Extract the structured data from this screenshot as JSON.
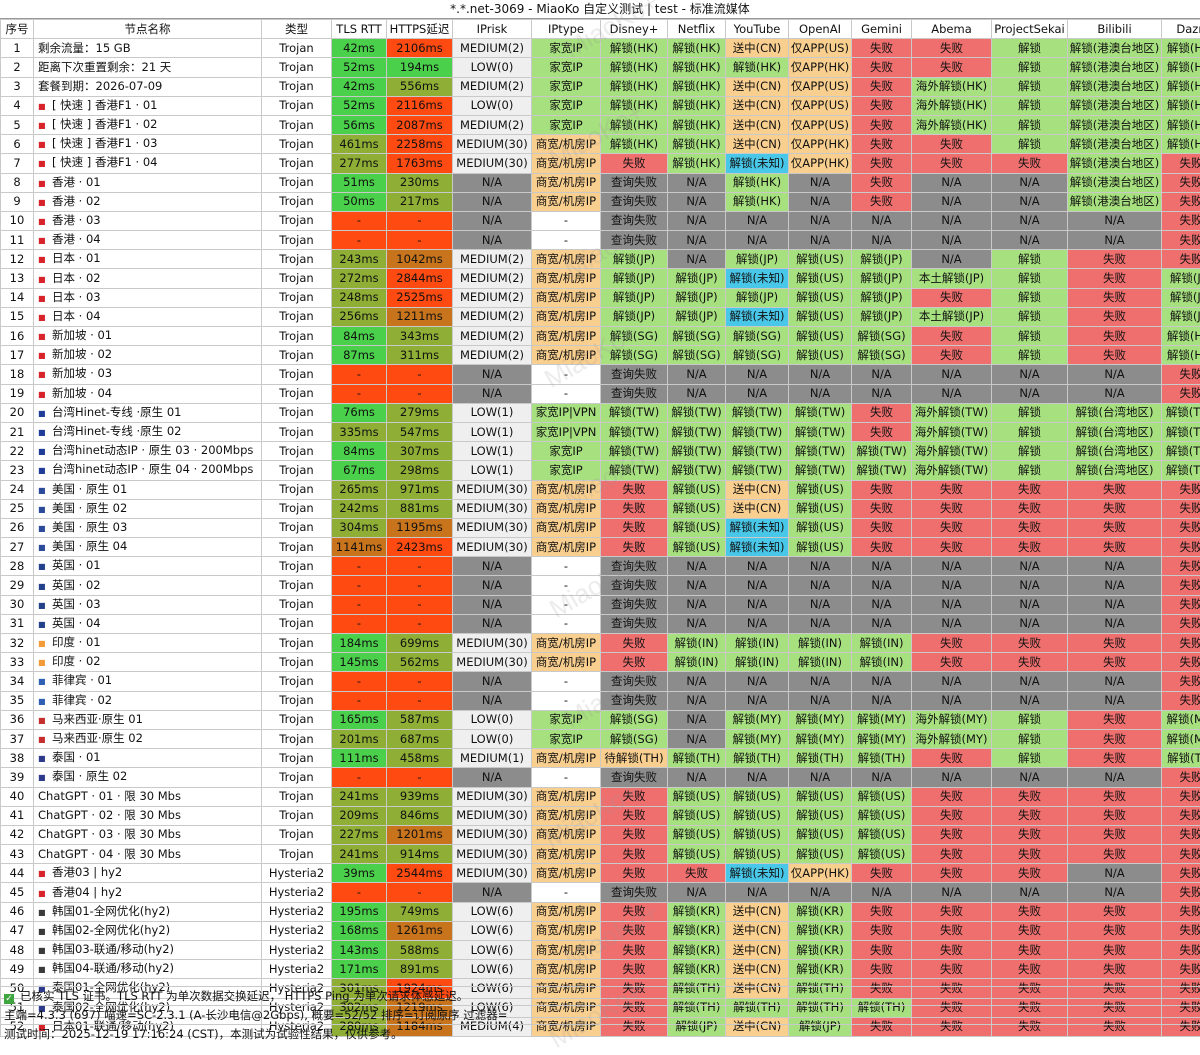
{
  "title": "*.*.net-3069 - MiaoKo 自定义测试 | test - 标准流媒体",
  "watermark": "MiaoKo+",
  "columns": [
    "序号",
    "节点名称",
    "类型",
    "TLS RTT",
    "HTTPS延迟",
    "IPrisk",
    "IPtype",
    "Disney+",
    "Netflix",
    "YouTube",
    "OpenAI",
    "Gemini",
    "Abema",
    "ProjectSekai",
    "Bilibili",
    "Dazn"
  ],
  "rows": [
    [
      "1",
      "剩余流量：15 GB",
      "Trojan",
      "42ms",
      "2106ms",
      "MEDIUM(2)",
      "家宽IP",
      "解锁(HK)",
      "解锁(HK)",
      "送中(CN)",
      "仅APP(US)",
      "失败",
      "失败",
      "解锁",
      "解锁(港澳台地区)",
      "解锁(HK)"
    ],
    [
      "2",
      "距离下次重置剩余：21 天",
      "Trojan",
      "52ms",
      "194ms",
      "LOW(0)",
      "家宽IP",
      "解锁(HK)",
      "解锁(HK)",
      "解锁(HK)",
      "仅APP(HK)",
      "失败",
      "失败",
      "解锁",
      "解锁(港澳台地区)",
      "解锁(HK)"
    ],
    [
      "3",
      "套餐到期：2026-07-09",
      "Trojan",
      "42ms",
      "556ms",
      "MEDIUM(2)",
      "家宽IP",
      "解锁(HK)",
      "解锁(HK)",
      "送中(CN)",
      "仅APP(US)",
      "失败",
      "海外解锁(HK)",
      "解锁",
      "解锁(港澳台地区)",
      "解锁(HK)"
    ],
    [
      "4",
      "[ 快速 ] 香港F1 · 01",
      "Trojan",
      "52ms",
      "2116ms",
      "LOW(0)",
      "家宽IP",
      "解锁(HK)",
      "解锁(HK)",
      "送中(CN)",
      "仅APP(US)",
      "失败",
      "海外解锁(HK)",
      "解锁",
      "解锁(港澳台地区)",
      "解锁(HK)"
    ],
    [
      "5",
      "[ 快速 ] 香港F1 · 02",
      "Trojan",
      "56ms",
      "2087ms",
      "MEDIUM(2)",
      "家宽IP",
      "解锁(HK)",
      "解锁(HK)",
      "送中(CN)",
      "仅APP(US)",
      "失败",
      "海外解锁(HK)",
      "解锁",
      "解锁(港澳台地区)",
      "解锁(HK)"
    ],
    [
      "6",
      "[ 快速 ] 香港F1 · 03",
      "Trojan",
      "461ms",
      "2258ms",
      "MEDIUM(30)",
      "商宽/机房IP",
      "解锁(HK)",
      "解锁(HK)",
      "送中(CN)",
      "仅APP(HK)",
      "失败",
      "失败",
      "解锁",
      "解锁(港澳台地区)",
      "解锁(HK)"
    ],
    [
      "7",
      "[ 快速 ] 香港F1 · 04",
      "Trojan",
      "277ms",
      "1763ms",
      "MEDIUM(30)",
      "商宽/机房IP",
      "失败",
      "解锁(HK)",
      "解锁(未知)",
      "仅APP(HK)",
      "失败",
      "失败",
      "失败",
      "解锁(港澳台地区)",
      "失败"
    ],
    [
      "8",
      "香港 · 01",
      "Trojan",
      "51ms",
      "230ms",
      "N/A",
      "商宽/机房IP",
      "查询失败",
      "N/A",
      "解锁(HK)",
      "N/A",
      "失败",
      "N/A",
      "N/A",
      "解锁(港澳台地区)",
      "失败"
    ],
    [
      "9",
      "香港 · 02",
      "Trojan",
      "50ms",
      "217ms",
      "N/A",
      "商宽/机房IP",
      "查询失败",
      "N/A",
      "解锁(HK)",
      "N/A",
      "失败",
      "N/A",
      "N/A",
      "解锁(港澳台地区)",
      "失败"
    ],
    [
      "10",
      "香港 · 03",
      "Trojan",
      "-",
      "-",
      "N/A",
      "-",
      "查询失败",
      "N/A",
      "N/A",
      "N/A",
      "N/A",
      "N/A",
      "N/A",
      "N/A",
      "失败"
    ],
    [
      "11",
      "香港 · 04",
      "Trojan",
      "-",
      "-",
      "N/A",
      "-",
      "查询失败",
      "N/A",
      "N/A",
      "N/A",
      "N/A",
      "N/A",
      "N/A",
      "N/A",
      "失败"
    ],
    [
      "12",
      "日本 · 01",
      "Trojan",
      "243ms",
      "1042ms",
      "MEDIUM(2)",
      "商宽/机房IP",
      "解锁(JP)",
      "N/A",
      "解锁(JP)",
      "解锁(US)",
      "解锁(JP)",
      "N/A",
      "解锁",
      "失败",
      "失败"
    ],
    [
      "13",
      "日本 · 02",
      "Trojan",
      "272ms",
      "2844ms",
      "MEDIUM(2)",
      "商宽/机房IP",
      "解锁(JP)",
      "解锁(JP)",
      "解锁(未知)",
      "解锁(US)",
      "解锁(JP)",
      "本土解锁(JP)",
      "解锁",
      "失败",
      "解锁(JP)"
    ],
    [
      "14",
      "日本 · 03",
      "Trojan",
      "248ms",
      "2525ms",
      "MEDIUM(2)",
      "商宽/机房IP",
      "解锁(JP)",
      "解锁(JP)",
      "解锁(JP)",
      "解锁(US)",
      "解锁(JP)",
      "失败",
      "解锁",
      "失败",
      "解锁(JP)"
    ],
    [
      "15",
      "日本 · 04",
      "Trojan",
      "256ms",
      "1211ms",
      "MEDIUM(2)",
      "商宽/机房IP",
      "解锁(JP)",
      "解锁(JP)",
      "解锁(未知)",
      "解锁(US)",
      "解锁(JP)",
      "本土解锁(JP)",
      "解锁",
      "失败",
      "解锁(JP)"
    ],
    [
      "16",
      "新加坡 · 01",
      "Trojan",
      "84ms",
      "343ms",
      "MEDIUM(2)",
      "商宽/机房IP",
      "解锁(SG)",
      "解锁(SG)",
      "解锁(SG)",
      "解锁(US)",
      "解锁(SG)",
      "失败",
      "解锁",
      "失败",
      "解锁(HK)"
    ],
    [
      "17",
      "新加坡 · 02",
      "Trojan",
      "87ms",
      "311ms",
      "MEDIUM(2)",
      "商宽/机房IP",
      "解锁(SG)",
      "解锁(SG)",
      "解锁(SG)",
      "解锁(US)",
      "解锁(SG)",
      "失败",
      "解锁",
      "失败",
      "解锁(HK)"
    ],
    [
      "18",
      "新加坡 · 03",
      "Trojan",
      "-",
      "-",
      "N/A",
      "-",
      "查询失败",
      "N/A",
      "N/A",
      "N/A",
      "N/A",
      "N/A",
      "N/A",
      "N/A",
      "失败"
    ],
    [
      "19",
      "新加坡 · 04",
      "Trojan",
      "-",
      "-",
      "N/A",
      "-",
      "查询失败",
      "N/A",
      "N/A",
      "N/A",
      "N/A",
      "N/A",
      "N/A",
      "N/A",
      "失败"
    ],
    [
      "20",
      "台湾Hinet-专线 ·原生 01",
      "Trojan",
      "76ms",
      "279ms",
      "LOW(1)",
      "家宽IP|VPN",
      "解锁(TW)",
      "解锁(TW)",
      "解锁(TW)",
      "解锁(TW)",
      "失败",
      "海外解锁(TW)",
      "解锁",
      "解锁(台湾地区)",
      "解锁(TW)"
    ],
    [
      "21",
      "台湾Hinet-专线 ·原生 02",
      "Trojan",
      "335ms",
      "547ms",
      "LOW(1)",
      "家宽IP|VPN",
      "解锁(TW)",
      "解锁(TW)",
      "解锁(TW)",
      "解锁(TW)",
      "失败",
      "海外解锁(TW)",
      "解锁",
      "解锁(台湾地区)",
      "解锁(TW)"
    ],
    [
      "22",
      "台湾hinet动态IP · 原生 03 · 200Mbps",
      "Trojan",
      "84ms",
      "307ms",
      "LOW(1)",
      "家宽IP",
      "解锁(TW)",
      "解锁(TW)",
      "解锁(TW)",
      "解锁(TW)",
      "解锁(TW)",
      "海外解锁(TW)",
      "解锁",
      "解锁(台湾地区)",
      "解锁(TW)"
    ],
    [
      "23",
      "台湾hinet动态IP · 原生 04 · 200Mbps",
      "Trojan",
      "67ms",
      "298ms",
      "LOW(1)",
      "家宽IP",
      "解锁(TW)",
      "解锁(TW)",
      "解锁(TW)",
      "解锁(TW)",
      "解锁(TW)",
      "海外解锁(TW)",
      "解锁",
      "解锁(台湾地区)",
      "解锁(TW)"
    ],
    [
      "24",
      "美国 · 原生 01",
      "Trojan",
      "265ms",
      "971ms",
      "MEDIUM(30)",
      "商宽/机房IP",
      "失败",
      "解锁(US)",
      "送中(CN)",
      "解锁(US)",
      "失败",
      "失败",
      "失败",
      "失败",
      "失败"
    ],
    [
      "25",
      "美国 · 原生 02",
      "Trojan",
      "242ms",
      "881ms",
      "MEDIUM(30)",
      "商宽/机房IP",
      "失败",
      "解锁(US)",
      "送中(CN)",
      "解锁(US)",
      "失败",
      "失败",
      "失败",
      "失败",
      "失败"
    ],
    [
      "26",
      "美国 · 原生 03",
      "Trojan",
      "304ms",
      "1195ms",
      "MEDIUM(30)",
      "商宽/机房IP",
      "失败",
      "解锁(US)",
      "解锁(未知)",
      "解锁(US)",
      "失败",
      "失败",
      "失败",
      "失败",
      "失败"
    ],
    [
      "27",
      "美国 · 原生 04",
      "Trojan",
      "1141ms",
      "2423ms",
      "MEDIUM(30)",
      "商宽/机房IP",
      "失败",
      "解锁(US)",
      "解锁(未知)",
      "解锁(US)",
      "失败",
      "失败",
      "失败",
      "失败",
      "失败"
    ],
    [
      "28",
      "英国 · 01",
      "Trojan",
      "-",
      "-",
      "N/A",
      "-",
      "查询失败",
      "N/A",
      "N/A",
      "N/A",
      "N/A",
      "N/A",
      "N/A",
      "N/A",
      "失败"
    ],
    [
      "29",
      "英国 · 02",
      "Trojan",
      "-",
      "-",
      "N/A",
      "-",
      "查询失败",
      "N/A",
      "N/A",
      "N/A",
      "N/A",
      "N/A",
      "N/A",
      "N/A",
      "失败"
    ],
    [
      "30",
      "英国 · 03",
      "Trojan",
      "-",
      "-",
      "N/A",
      "-",
      "查询失败",
      "N/A",
      "N/A",
      "N/A",
      "N/A",
      "N/A",
      "N/A",
      "N/A",
      "失败"
    ],
    [
      "31",
      "英国 · 04",
      "Trojan",
      "-",
      "-",
      "N/A",
      "-",
      "查询失败",
      "N/A",
      "N/A",
      "N/A",
      "N/A",
      "N/A",
      "N/A",
      "N/A",
      "失败"
    ],
    [
      "32",
      "印度 · 01",
      "Trojan",
      "184ms",
      "699ms",
      "MEDIUM(30)",
      "商宽/机房IP",
      "失败",
      "解锁(IN)",
      "解锁(IN)",
      "解锁(IN)",
      "解锁(IN)",
      "失败",
      "失败",
      "失败",
      "失败"
    ],
    [
      "33",
      "印度 · 02",
      "Trojan",
      "145ms",
      "562ms",
      "MEDIUM(30)",
      "商宽/机房IP",
      "失败",
      "解锁(IN)",
      "解锁(IN)",
      "解锁(IN)",
      "解锁(IN)",
      "失败",
      "失败",
      "失败",
      "失败"
    ],
    [
      "34",
      "菲律宾 · 01",
      "Trojan",
      "-",
      "-",
      "N/A",
      "-",
      "查询失败",
      "N/A",
      "N/A",
      "N/A",
      "N/A",
      "N/A",
      "N/A",
      "N/A",
      "失败"
    ],
    [
      "35",
      "菲律宾 · 02",
      "Trojan",
      "-",
      "-",
      "N/A",
      "-",
      "查询失败",
      "N/A",
      "N/A",
      "N/A",
      "N/A",
      "N/A",
      "N/A",
      "N/A",
      "失败"
    ],
    [
      "36",
      "马来西亚·原生 01",
      "Trojan",
      "165ms",
      "587ms",
      "LOW(0)",
      "家宽IP",
      "解锁(SG)",
      "N/A",
      "解锁(MY)",
      "解锁(MY)",
      "解锁(MY)",
      "海外解锁(MY)",
      "解锁",
      "失败",
      "解锁(MY)"
    ],
    [
      "37",
      "马来西亚·原生  02",
      "Trojan",
      "201ms",
      "687ms",
      "LOW(0)",
      "家宽IP",
      "解锁(SG)",
      "N/A",
      "解锁(MY)",
      "解锁(MY)",
      "解锁(MY)",
      "海外解锁(MY)",
      "解锁",
      "失败",
      "解锁(MY)"
    ],
    [
      "38",
      "泰国 · 01",
      "Trojan",
      "111ms",
      "458ms",
      "MEDIUM(1)",
      "商宽/机房IP",
      "待解锁(TH)",
      "解锁(TH)",
      "解锁(TH)",
      "解锁(TH)",
      "解锁(TH)",
      "失败",
      "解锁",
      "失败",
      "解锁(TH)"
    ],
    [
      "39",
      "泰国 · 原生  02",
      "Trojan",
      "-",
      "-",
      "N/A",
      "-",
      "查询失败",
      "N/A",
      "N/A",
      "N/A",
      "N/A",
      "N/A",
      "N/A",
      "N/A",
      "失败"
    ],
    [
      "40",
      "ChatGPT · 01 · 限 30 Mbs",
      "Trojan",
      "241ms",
      "939ms",
      "MEDIUM(30)",
      "商宽/机房IP",
      "失败",
      "解锁(US)",
      "解锁(US)",
      "解锁(US)",
      "解锁(US)",
      "失败",
      "失败",
      "失败",
      "失败"
    ],
    [
      "41",
      "ChatGPT · 02 · 限 30 Mbs",
      "Trojan",
      "209ms",
      "846ms",
      "MEDIUM(30)",
      "商宽/机房IP",
      "失败",
      "解锁(US)",
      "解锁(US)",
      "解锁(US)",
      "解锁(US)",
      "失败",
      "失败",
      "失败",
      "失败"
    ],
    [
      "42",
      "ChatGPT · 03 · 限 30 Mbs",
      "Trojan",
      "227ms",
      "1201ms",
      "MEDIUM(30)",
      "商宽/机房IP",
      "失败",
      "解锁(US)",
      "解锁(US)",
      "解锁(US)",
      "解锁(US)",
      "失败",
      "失败",
      "失败",
      "失败"
    ],
    [
      "43",
      "ChatGPT · 04 · 限 30 Mbs",
      "Trojan",
      "241ms",
      "914ms",
      "MEDIUM(30)",
      "商宽/机房IP",
      "失败",
      "解锁(US)",
      "解锁(US)",
      "解锁(US)",
      "解锁(US)",
      "失败",
      "失败",
      "失败",
      "失败"
    ],
    [
      "44",
      "香港03 | hy2",
      "Hysteria2",
      "39ms",
      "2544ms",
      "MEDIUM(30)",
      "商宽/机房IP",
      "失败",
      "失败",
      "解锁(未知)",
      "仅APP(HK)",
      "失败",
      "失败",
      "失败",
      "N/A",
      "失败"
    ],
    [
      "45",
      "香港04 | hy2",
      "Hysteria2",
      "-",
      "-",
      "N/A",
      "-",
      "查询失败",
      "N/A",
      "N/A",
      "N/A",
      "N/A",
      "N/A",
      "N/A",
      "N/A",
      "失败"
    ],
    [
      "46",
      "韩国01-全网优化(hy2)",
      "Hysteria2",
      "195ms",
      "749ms",
      "LOW(6)",
      "商宽/机房IP",
      "失败",
      "解锁(KR)",
      "送中(CN)",
      "解锁(KR)",
      "失败",
      "失败",
      "失败",
      "失败",
      "失败"
    ],
    [
      "47",
      "韩国02-全网优化(hy2)",
      "Hysteria2",
      "168ms",
      "1261ms",
      "LOW(6)",
      "商宽/机房IP",
      "失败",
      "解锁(KR)",
      "送中(CN)",
      "解锁(KR)",
      "失败",
      "失败",
      "失败",
      "失败",
      "失败"
    ],
    [
      "48",
      "韩国03-联通/移动(hy2)",
      "Hysteria2",
      "143ms",
      "588ms",
      "LOW(6)",
      "商宽/机房IP",
      "失败",
      "解锁(KR)",
      "送中(CN)",
      "解锁(KR)",
      "失败",
      "失败",
      "失败",
      "失败",
      "失败"
    ],
    [
      "49",
      "韩国04-联通/移动(hy2)",
      "Hysteria2",
      "171ms",
      "891ms",
      "LOW(6)",
      "商宽/机房IP",
      "失败",
      "解锁(KR)",
      "送中(CN)",
      "解锁(KR)",
      "失败",
      "失败",
      "失败",
      "失败",
      "失败"
    ],
    [
      "50",
      "泰国01-全网优化(hy2)",
      "Hysteria2",
      "301ms",
      "1924ms",
      "LOW(6)",
      "商宽/机房IP",
      "失败",
      "解锁(TH)",
      "送中(CN)",
      "解锁(TH)",
      "失败",
      "失败",
      "失败",
      "失败",
      "失败"
    ],
    [
      "51",
      "泰国02-全网优化(hy2)",
      "Hysteria2",
      "302ms",
      "1219ms",
      "LOW(6)",
      "商宽/机房IP",
      "失败",
      "解锁(TH)",
      "解锁(TH)",
      "解锁(TH)",
      "解锁(TH)",
      "失败",
      "失败",
      "失败",
      "失败"
    ],
    [
      "52",
      "日本01-联通/移动(hy2)",
      "Hysteria2",
      "280ms",
      "1184ms",
      "MEDIUM(4)",
      "商宽/机房IP",
      "失败",
      "解锁(JP)",
      "送中(CN)",
      "解锁(JP)",
      "失败",
      "失败",
      "失败",
      "失败",
      "失败"
    ]
  ],
  "flags": {
    "4": "HK",
    "5": "HK",
    "6": "HK",
    "7": "HK",
    "8": "HK",
    "9": "HK",
    "10": "HK",
    "11": "HK",
    "12": "JP",
    "13": "JP",
    "14": "JP",
    "15": "JP",
    "16": "SG",
    "17": "SG",
    "18": "SG",
    "19": "SG",
    "20": "TW",
    "21": "TW",
    "22": "TW",
    "23": "TW",
    "24": "US",
    "25": "US",
    "26": "US",
    "27": "US",
    "28": "UK",
    "29": "UK",
    "30": "UK",
    "31": "UK",
    "32": "IN",
    "33": "IN",
    "34": "PH",
    "35": "PH",
    "36": "MY",
    "37": "MY",
    "38": "TH",
    "39": "TH",
    "44": "HK",
    "45": "HK",
    "46": "KR",
    "47": "KR",
    "48": "KR",
    "49": "KR",
    "50": "TH",
    "51": "TH",
    "52": "JP"
  },
  "colors": {
    "fast": "#4ad04a",
    "mid": "#8fae35",
    "slow": "#c8741c",
    "bad": "#ff4a12",
    "dash": "#ff4a12",
    "unlock": "#a7e07f",
    "fail": "#ef6f6f",
    "na": "#8c8c8c",
    "orange": "#f9cf8f",
    "blue": "#49c7e8",
    "risk_bg": "#efefef",
    "home_ip": "#a7e07f",
    "dc_ip": "#f9cf8f"
  },
  "footer": {
    "line1": "已核实 TLS 证书。TLS RTT 为单次数据交换延迟， HTTPS Ping 为单次请求体感延迟。",
    "line2": "主端=4.3.3 (697) 喵速=SC-2.3.1 (A-长沙电信@2Gbps), 概要=52/52 排序=订阅原序 过滤器=",
    "line3": "测试时间：2025-12-19 17:16:24 (CST)，本测试为试验性结果，仅供参考。"
  }
}
